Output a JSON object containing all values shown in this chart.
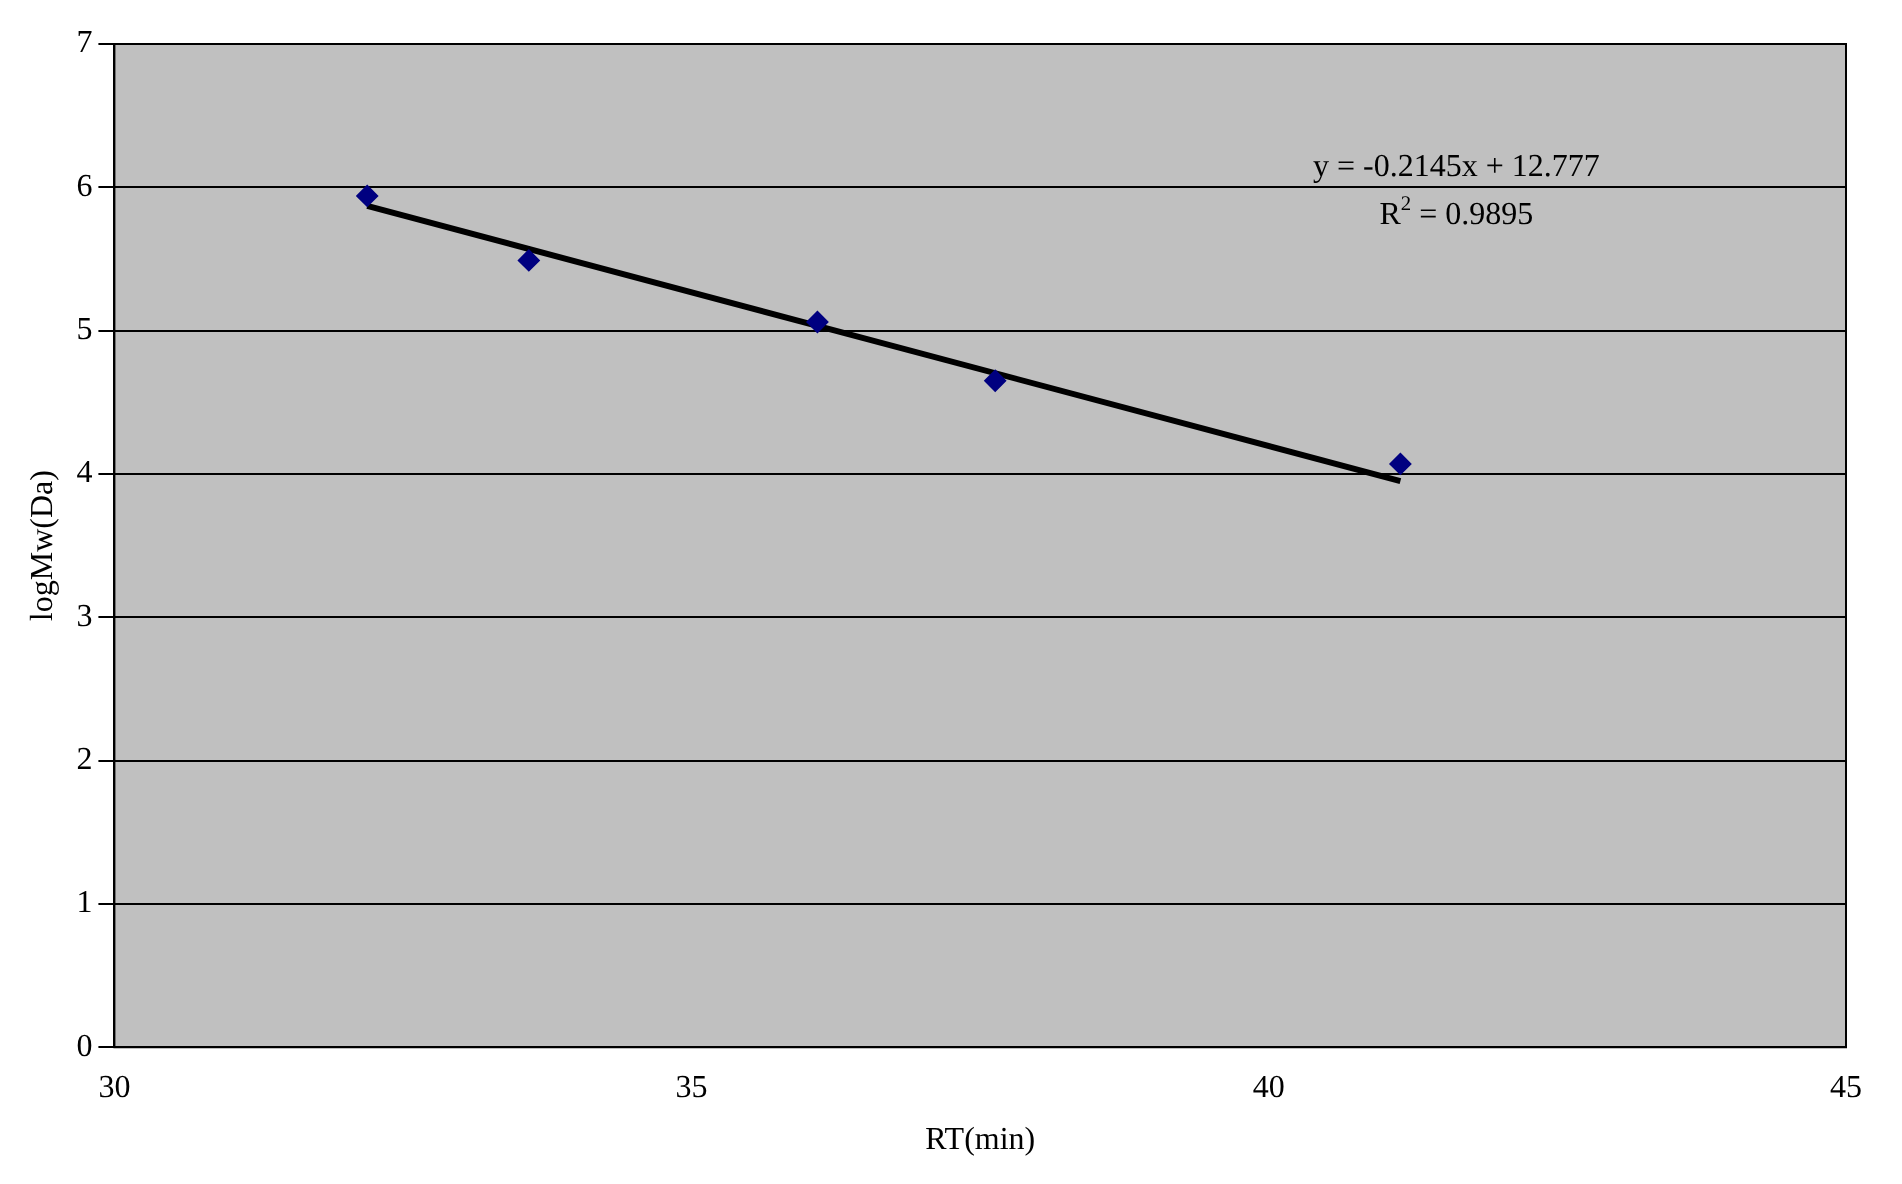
{
  "chart_data": {
    "type": "scatter",
    "xlabel": "RT(min)",
    "ylabel": "logMw(Da)",
    "xlim": [
      30,
      45
    ],
    "xticks": [
      30,
      35,
      40,
      45
    ],
    "ylim": [
      0,
      7
    ],
    "yticks": [
      0,
      1,
      2,
      3,
      4,
      5,
      6,
      7
    ],
    "grid": "y",
    "legend": false,
    "marker": "diamond",
    "annotations": [
      "y = -0.2145x + 12.777",
      "R$^{2}$ = 0.9895"
    ],
    "series": [
      {
        "type": "scatter",
        "color": "#000080",
        "x": [
          32.19,
          33.59,
          36.09,
          37.63,
          41.14
        ],
        "values": [
          5.94,
          5.49,
          5.06,
          4.65,
          4.07
        ]
      },
      {
        "type": "line",
        "color": "#000000",
        "marker": "none",
        "x": [
          32.19,
          41.14
        ],
        "values": [
          5.87,
          3.95
        ]
      }
    ]
  }
}
